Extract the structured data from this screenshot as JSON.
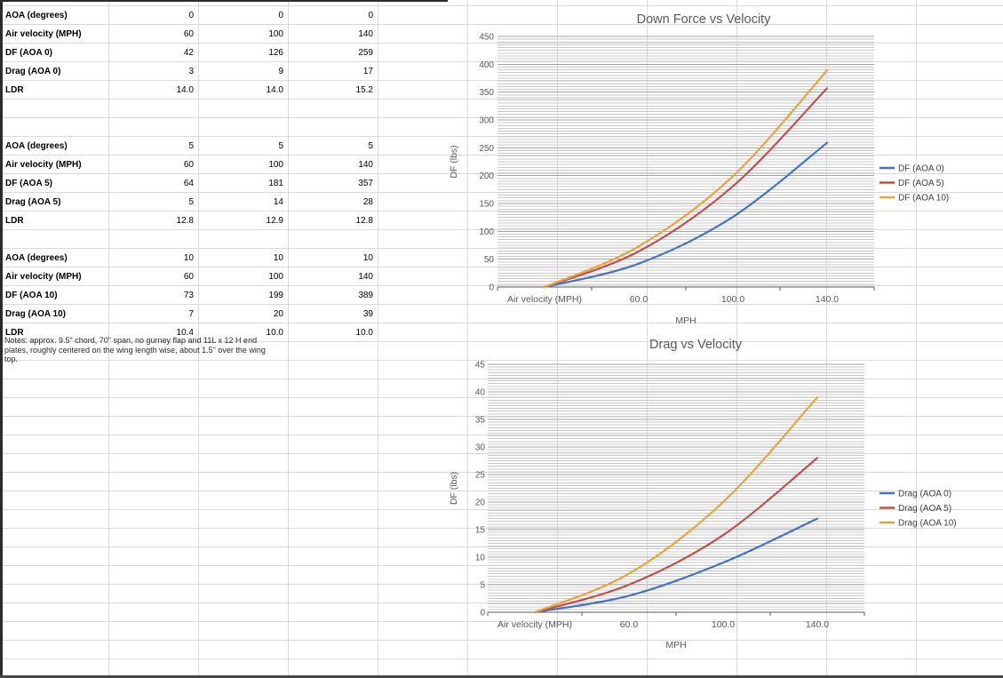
{
  "sheet": {
    "table": {
      "blocks": [
        {
          "rows": [
            {
              "label": "AOA (degrees)",
              "values": [
                "0",
                "0",
                "0"
              ]
            },
            {
              "label": "Air velocity (MPH)",
              "values": [
                "60",
                "100",
                "140"
              ]
            },
            {
              "label": "DF (AOA 0)",
              "values": [
                "42",
                "126",
                "259"
              ]
            },
            {
              "label": "Drag (AOA 0)",
              "values": [
                "3",
                "9",
                "17"
              ]
            },
            {
              "label": "LDR",
              "values": [
                "14.0",
                "14.0",
                "15.2"
              ]
            }
          ]
        },
        {
          "rows": [
            {
              "label": "AOA (degrees)",
              "values": [
                "5",
                "5",
                "5"
              ]
            },
            {
              "label": "Air velocity (MPH)",
              "values": [
                "60",
                "100",
                "140"
              ]
            },
            {
              "label": "DF (AOA 5)",
              "values": [
                "64",
                "181",
                "357"
              ]
            },
            {
              "label": "Drag (AOA 5)",
              "values": [
                "5",
                "14",
                "28"
              ]
            },
            {
              "label": "LDR",
              "values": [
                "12.8",
                "12.9",
                "12.8"
              ]
            }
          ]
        },
        {
          "rows": [
            {
              "label": "AOA (degrees)",
              "values": [
                "10",
                "10",
                "10"
              ]
            },
            {
              "label": "Air velocity (MPH)",
              "values": [
                "60",
                "100",
                "140"
              ]
            },
            {
              "label": "DF (AOA 10)",
              "values": [
                "73",
                "199",
                "389"
              ]
            },
            {
              "label": "Drag (AOA 10)",
              "values": [
                "7",
                "20",
                "39"
              ]
            },
            {
              "label": "LDR",
              "values": [
                "10.4",
                "10.0",
                "10.0"
              ]
            }
          ]
        }
      ],
      "notes": "Notes: approx. 9.5\" chord, 70\" span, no gurney flap and 11L x 12 H end plates, roughly centered on the wing length wise, about 1.5\" over the wing top."
    }
  },
  "chart_data": [
    {
      "type": "line",
      "title": "Down Force vs Velocity",
      "xlabel": "MPH",
      "ylabel": "DF (lbs)",
      "categories": [
        "Air velocity (MPH)",
        "60.0",
        "100.0",
        "140.0"
      ],
      "ylim": [
        0,
        450
      ],
      "ytick_step": 50,
      "grid": "horizontal major+minor",
      "legend_position": "right",
      "smooth_lines": true,
      "series": [
        {
          "name": "DF (AOA 0)",
          "color": "#4472C4",
          "values": [
            0,
            42,
            126,
            259
          ]
        },
        {
          "name": "DF (AOA 5)",
          "color": "#C0504D",
          "values": [
            0,
            64,
            181,
            357
          ]
        },
        {
          "name": "DF (AOA 10)",
          "color": "#E8A33D",
          "values": [
            0,
            73,
            199,
            389
          ]
        }
      ]
    },
    {
      "type": "line",
      "title": "Drag vs Velocity",
      "xlabel": "MPH",
      "ylabel": "DF (lbs)",
      "categories": [
        "Air velocity (MPH)",
        "60.0",
        "100.0",
        "140.0"
      ],
      "ylim": [
        0,
        45
      ],
      "ytick_step": 5,
      "grid": "horizontal major+minor",
      "legend_position": "right",
      "smooth_lines": true,
      "series": [
        {
          "name": "Drag (AOA 0)",
          "color": "#4472C4",
          "values": [
            0,
            3,
            9,
            17
          ]
        },
        {
          "name": "Drag (AOA 5)",
          "color": "#C0504D",
          "values": [
            0,
            5,
            14,
            28
          ]
        },
        {
          "name": "Drag (AOA 10)",
          "color": "#E8A33D",
          "values": [
            0,
            7,
            20,
            39
          ]
        }
      ]
    }
  ]
}
